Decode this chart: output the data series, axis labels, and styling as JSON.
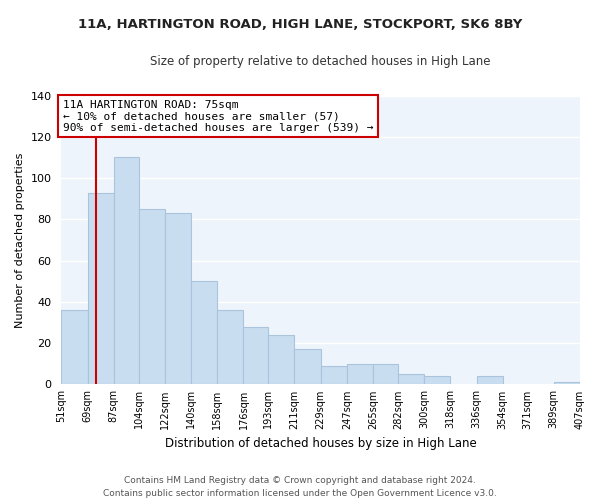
{
  "title": "11A, HARTINGTON ROAD, HIGH LANE, STOCKPORT, SK6 8BY",
  "subtitle": "Size of property relative to detached houses in High Lane",
  "xlabel": "Distribution of detached houses by size in High Lane",
  "ylabel": "Number of detached properties",
  "bin_labels": [
    "51sqm",
    "69sqm",
    "87sqm",
    "104sqm",
    "122sqm",
    "140sqm",
    "158sqm",
    "176sqm",
    "193sqm",
    "211sqm",
    "229sqm",
    "247sqm",
    "265sqm",
    "282sqm",
    "300sqm",
    "318sqm",
    "336sqm",
    "354sqm",
    "371sqm",
    "389sqm",
    "407sqm"
  ],
  "bin_edges": [
    51,
    69,
    87,
    104,
    122,
    140,
    158,
    176,
    193,
    211,
    229,
    247,
    265,
    282,
    300,
    318,
    336,
    354,
    371,
    389,
    407
  ],
  "bar_heights": [
    36,
    93,
    110,
    85,
    83,
    50,
    36,
    28,
    24,
    17,
    9,
    10,
    10,
    5,
    4,
    0,
    4,
    0,
    0,
    1,
    0
  ],
  "bar_color": "#c8ddef",
  "bar_edgecolor": "#aac4de",
  "ylim": [
    0,
    140
  ],
  "yticks": [
    0,
    20,
    40,
    60,
    80,
    100,
    120,
    140
  ],
  "vline_x": 75,
  "vline_color": "#cc0000",
  "annotation_title": "11A HARTINGTON ROAD: 75sqm",
  "annotation_line1": "← 10% of detached houses are smaller (57)",
  "annotation_line2": "90% of semi-detached houses are larger (539) →",
  "annotation_box_color": "#ffffff",
  "annotation_box_edgecolor": "#cc0000",
  "footer_line1": "Contains HM Land Registry data © Crown copyright and database right 2024.",
  "footer_line2": "Contains public sector information licensed under the Open Government Licence v3.0.",
  "bg_color": "#eef4fb",
  "grid_color": "#ffffff",
  "title_fontsize": 9.5,
  "subtitle_fontsize": 8.5
}
